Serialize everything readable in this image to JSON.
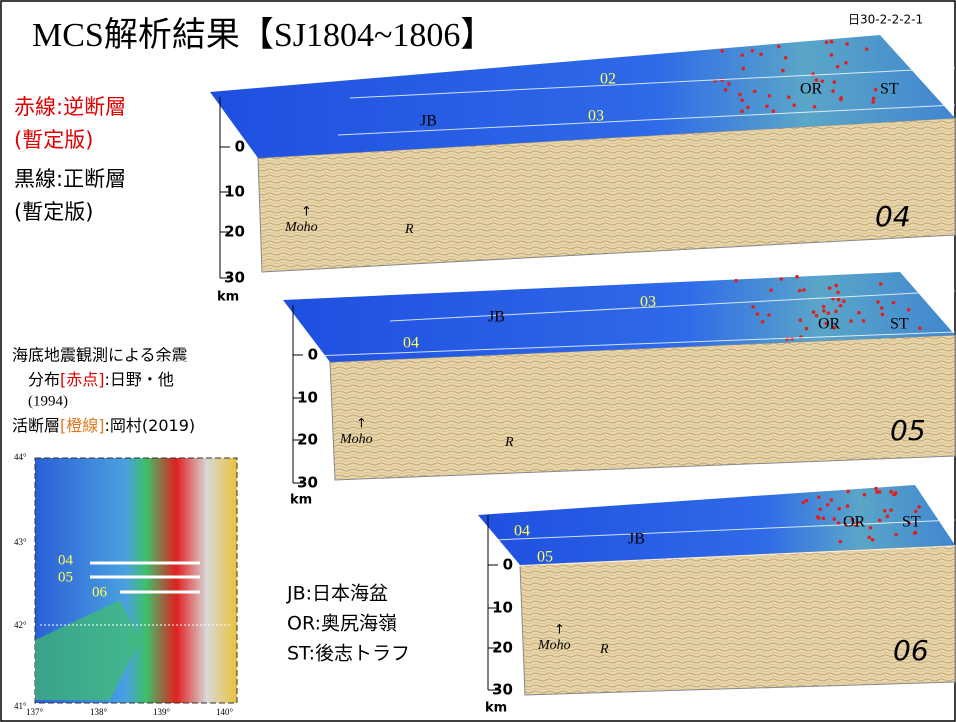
{
  "title": "MCS解析結果【SJ1804~1806】",
  "slide_id": "日30-2-2-2-1",
  "legend": {
    "red_lines": "赤線:逆断層",
    "red_note": "(暫定版)",
    "black_lines": "黒線:正断層",
    "black_note": "(暫定版)"
  },
  "notes": {
    "aftershock_1": "海底地震観測による余震",
    "aftershock_2_prefix": "分布",
    "aftershock_2_red": "[赤点]",
    "aftershock_2_suffix": ":日野・他",
    "aftershock_3": "(1994)",
    "fault_prefix": "活断層",
    "fault_orange": "[橙線]",
    "fault_suffix": ":岡村(2019)"
  },
  "abbreviations": [
    "JB:日本海盆",
    "OR:奥尻海嶺",
    "ST:後志トラフ"
  ],
  "map": {
    "lat_labels": [
      "44°",
      "43°",
      "42°",
      "41°"
    ],
    "lon_labels": [
      "137°",
      "138°",
      "139°",
      "140°"
    ],
    "lines": [
      "04",
      "05",
      "06"
    ]
  },
  "panels": [
    {
      "id": "04",
      "lines": [
        "02",
        "03"
      ],
      "features": [
        "JB",
        "OR",
        "ST"
      ],
      "depth_ticks": [
        0,
        10,
        20,
        30
      ],
      "depth_unit": "km",
      "moho": "Moho",
      "reflector": "R"
    },
    {
      "id": "05",
      "lines": [
        "03",
        "04"
      ],
      "features": [
        "JB",
        "OR",
        "ST"
      ],
      "depth_ticks": [
        0,
        10,
        20,
        30
      ],
      "depth_unit": "km",
      "moho": "Moho",
      "reflector": "R"
    },
    {
      "id": "06",
      "lines": [
        "04",
        "05"
      ],
      "features": [
        "JB",
        "OR",
        "ST"
      ],
      "depth_ticks": [
        0,
        10,
        20,
        30
      ],
      "depth_unit": "km",
      "moho": "Moho",
      "reflector": "R"
    }
  ]
}
